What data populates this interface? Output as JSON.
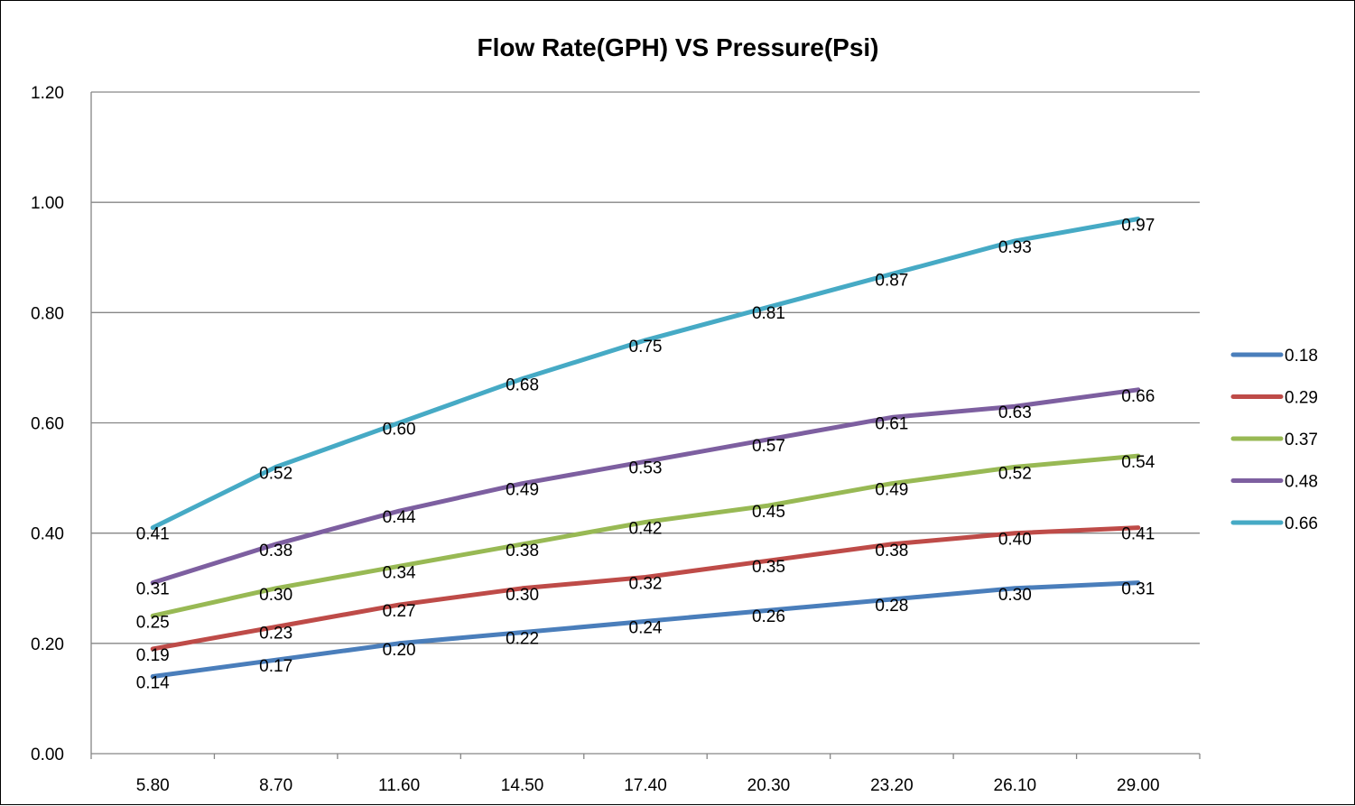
{
  "chart_data": {
    "type": "line",
    "title": "Flow Rate(GPH) VS Pressure(Psi)",
    "xlabel": "",
    "ylabel": "",
    "x": [
      "5.80",
      "8.70",
      "11.60",
      "14.50",
      "17.40",
      "20.30",
      "23.20",
      "26.10",
      "29.00"
    ],
    "ylim": [
      0,
      1.2
    ],
    "yticks": [
      "0.00",
      "0.20",
      "0.40",
      "0.60",
      "0.80",
      "1.00",
      "1.20"
    ],
    "grid": true,
    "legend_position": "right",
    "series": [
      {
        "name": "0.18",
        "color": "#4a7ebb",
        "values": [
          0.14,
          0.17,
          0.2,
          0.22,
          0.24,
          0.26,
          0.28,
          0.3,
          0.31
        ]
      },
      {
        "name": "0.29",
        "color": "#be4b48",
        "values": [
          0.19,
          0.23,
          0.27,
          0.3,
          0.32,
          0.35,
          0.38,
          0.4,
          0.41
        ]
      },
      {
        "name": "0.37",
        "color": "#98b954",
        "values": [
          0.25,
          0.3,
          0.34,
          0.38,
          0.42,
          0.45,
          0.49,
          0.52,
          0.54
        ]
      },
      {
        "name": "0.48",
        "color": "#7d5fa0",
        "values": [
          0.31,
          0.38,
          0.44,
          0.49,
          0.53,
          0.57,
          0.61,
          0.63,
          0.66
        ]
      },
      {
        "name": "0.66",
        "color": "#46aac5",
        "values": [
          0.41,
          0.52,
          0.6,
          0.68,
          0.75,
          0.81,
          0.87,
          0.93,
          0.97
        ]
      }
    ]
  }
}
